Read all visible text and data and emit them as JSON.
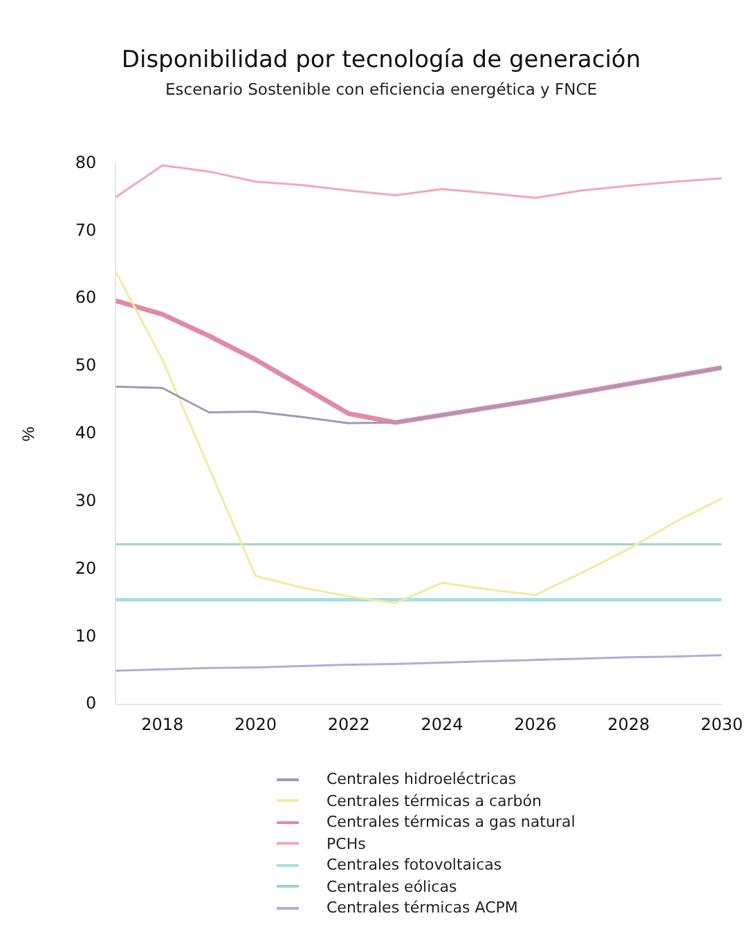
{
  "chart_data": {
    "type": "line",
    "title": "Disponibilidad por tecnología de generación",
    "subtitle": "Escenario Sostenible con eficiencia energética y FNCE",
    "ylabel": "%",
    "x": [
      2017,
      2018,
      2019,
      2020,
      2021,
      2022,
      2023,
      2024,
      2025,
      2026,
      2027,
      2028,
      2029,
      2030
    ],
    "xlim": [
      2017,
      2030
    ],
    "xticks": [
      2018,
      2020,
      2022,
      2024,
      2026,
      2028,
      2030
    ],
    "ylim": [
      0,
      80
    ],
    "yticks": [
      0,
      10,
      20,
      30,
      40,
      50,
      60,
      70,
      80
    ],
    "grid": false,
    "legend": "bottom",
    "marker": "none",
    "series": [
      {
        "name": "Centrales hidroeléctricas",
        "color": "#9e9ab8",
        "values": [
          47,
          46.8,
          43.2,
          43.3,
          42.5,
          41.6,
          41.7,
          42.8,
          43.9,
          45,
          46.2,
          47.4,
          48.6,
          49.8
        ]
      },
      {
        "name": "Centrales térmicas a carbón",
        "color": "#f0ec9c",
        "values": [
          64,
          51,
          35,
          19,
          17.3,
          16,
          15,
          18,
          17,
          16.2,
          19.5,
          23,
          27,
          30.5
        ]
      },
      {
        "name": "Centrales térmicas a gas natural",
        "color": "#e08aa8",
        "values": [
          59.7,
          57.7,
          54.5,
          51,
          47,
          43,
          41.7,
          42.8,
          43.9,
          45,
          46.2,
          47.4,
          48.6,
          49.8
        ]
      },
      {
        "name": "PCHs",
        "color": "#f2a8b4",
        "values": [
          75,
          79.7,
          78.8,
          77.3,
          76.8,
          76,
          75.3,
          76.2,
          75.6,
          74.9,
          76,
          76.7,
          77.3,
          77.8
        ]
      },
      {
        "name": "Centrales fotovoltaicas",
        "color": "#a6dfe6",
        "values": [
          15.5,
          15.5,
          15.5,
          15.5,
          15.5,
          15.5,
          15.5,
          15.5,
          15.5,
          15.5,
          15.5,
          15.5,
          15.5,
          15.5
        ]
      },
      {
        "name": "Centrales eólicas",
        "color": "#9fd3c0",
        "values": [
          23.7,
          23.7,
          23.7,
          23.7,
          23.7,
          23.7,
          23.7,
          23.7,
          23.7,
          23.7,
          23.7,
          23.7,
          23.7,
          23.7
        ]
      },
      {
        "name": "Centrales térmicas ACPM",
        "color": "#b3acd2",
        "values": [
          5,
          5.2,
          5.4,
          5.5,
          5.7,
          5.9,
          6,
          6.2,
          6.4,
          6.6,
          6.8,
          7,
          7.1,
          7.3
        ]
      }
    ]
  }
}
